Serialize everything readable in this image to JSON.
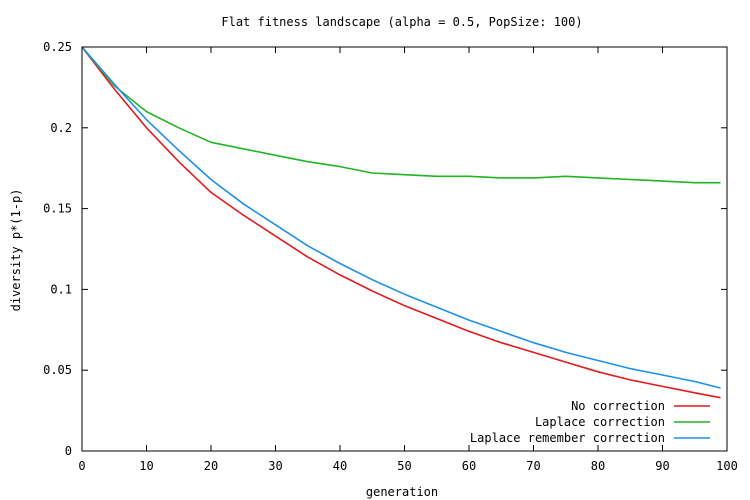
{
  "chart_data": {
    "type": "line",
    "title": "Flat fitness landscape (alpha = 0.5, PopSize: 100)",
    "xlabel": "generation",
    "ylabel": "diversity p*(1-p)",
    "xlim": [
      0,
      100
    ],
    "ylim": [
      0,
      0.25
    ],
    "xticks": [
      "0",
      "10",
      "20",
      "30",
      "40",
      "50",
      "60",
      "70",
      "80",
      "90",
      "100"
    ],
    "yticks": [
      "0",
      "0.05",
      "0.1",
      "0.15",
      "0.2",
      "0.25"
    ],
    "grid": false,
    "legend_position": "bottom-right",
    "x": [
      0,
      5,
      10,
      15,
      20,
      25,
      30,
      35,
      40,
      45,
      50,
      55,
      60,
      65,
      70,
      75,
      80,
      85,
      90,
      95,
      99
    ],
    "series": [
      {
        "name": "No correction",
        "color": "#e41a1c",
        "values": [
          0.25,
          0.224,
          0.2,
          0.179,
          0.16,
          0.146,
          0.133,
          0.12,
          0.109,
          0.099,
          0.09,
          0.082,
          0.074,
          0.067,
          0.061,
          0.055,
          0.049,
          0.044,
          0.04,
          0.036,
          0.033
        ]
      },
      {
        "name": "Laplace correction",
        "color": "#22b422",
        "values": [
          0.25,
          0.226,
          0.21,
          0.2,
          0.191,
          0.187,
          0.183,
          0.179,
          0.176,
          0.172,
          0.171,
          0.17,
          0.17,
          0.169,
          0.169,
          0.17,
          0.169,
          0.168,
          0.167,
          0.166,
          0.166
        ]
      },
      {
        "name": "Laplace remember correction",
        "color": "#1e90e8",
        "values": [
          0.25,
          0.227,
          0.205,
          0.186,
          0.168,
          0.153,
          0.14,
          0.127,
          0.116,
          0.106,
          0.097,
          0.089,
          0.081,
          0.074,
          0.067,
          0.061,
          0.056,
          0.051,
          0.047,
          0.043,
          0.039
        ]
      }
    ]
  }
}
